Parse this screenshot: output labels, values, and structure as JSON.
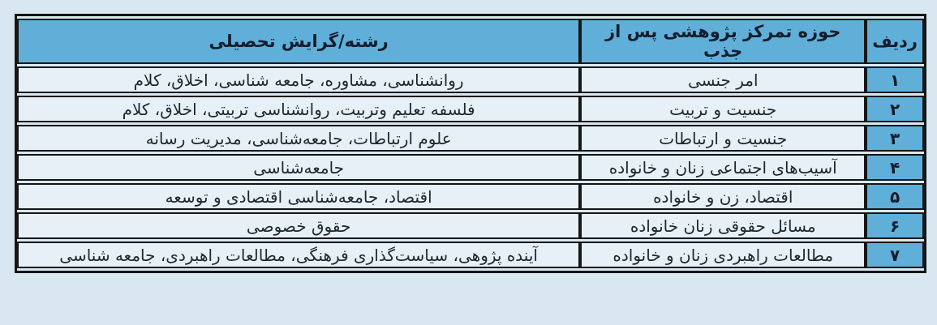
{
  "table": {
    "headers": {
      "row_no": "ردیف",
      "focus": "حوزه تمرکز پژوهشی پس از جذب",
      "field": "رشته/گرایش تحصیلی"
    },
    "rows": [
      {
        "no": "۱",
        "focus": "امر جنسی",
        "field": "روانشناسی، مشاوره، جامعه شناسی، اخلاق، کلام"
      },
      {
        "no": "۲",
        "focus": "جنسیت و تربیت",
        "field": "فلسفه تعلیم وتربیت، روانشناسی تربیتی، اخلاق، کلام"
      },
      {
        "no": "۳",
        "focus": "جنسیت و ارتباطات",
        "field": "علوم ارتباطات، جامعه‌شناسی، مدیریت رسانه"
      },
      {
        "no": "۴",
        "focus": "آسیب‌های اجتماعی زنان و خانواده",
        "field": "جامعه‌شناسی"
      },
      {
        "no": "۵",
        "focus": "اقتصاد، زن و خانواده",
        "field": "اقتصاد، جامعه‌شناسی اقتصادی و توسعه"
      },
      {
        "no": "۶",
        "focus": "مسائل حقوقی زنان خانواده",
        "field": "حقوق خصوصی"
      },
      {
        "no": "۷",
        "focus": "مطالعات راهبردی زنان و خانواده",
        "field": "آینده پژوهی، سیاست‌گذاری فرهنگی، مطالعات راهبردی، جامعه شناسی"
      }
    ],
    "colors": {
      "page_background": "#d9e8f0",
      "header_blue": "#5fafd9",
      "cell_background": "#e7f0f6",
      "border": "#161616",
      "header_text": "#141d2c",
      "body_text": "#1d2731"
    }
  }
}
